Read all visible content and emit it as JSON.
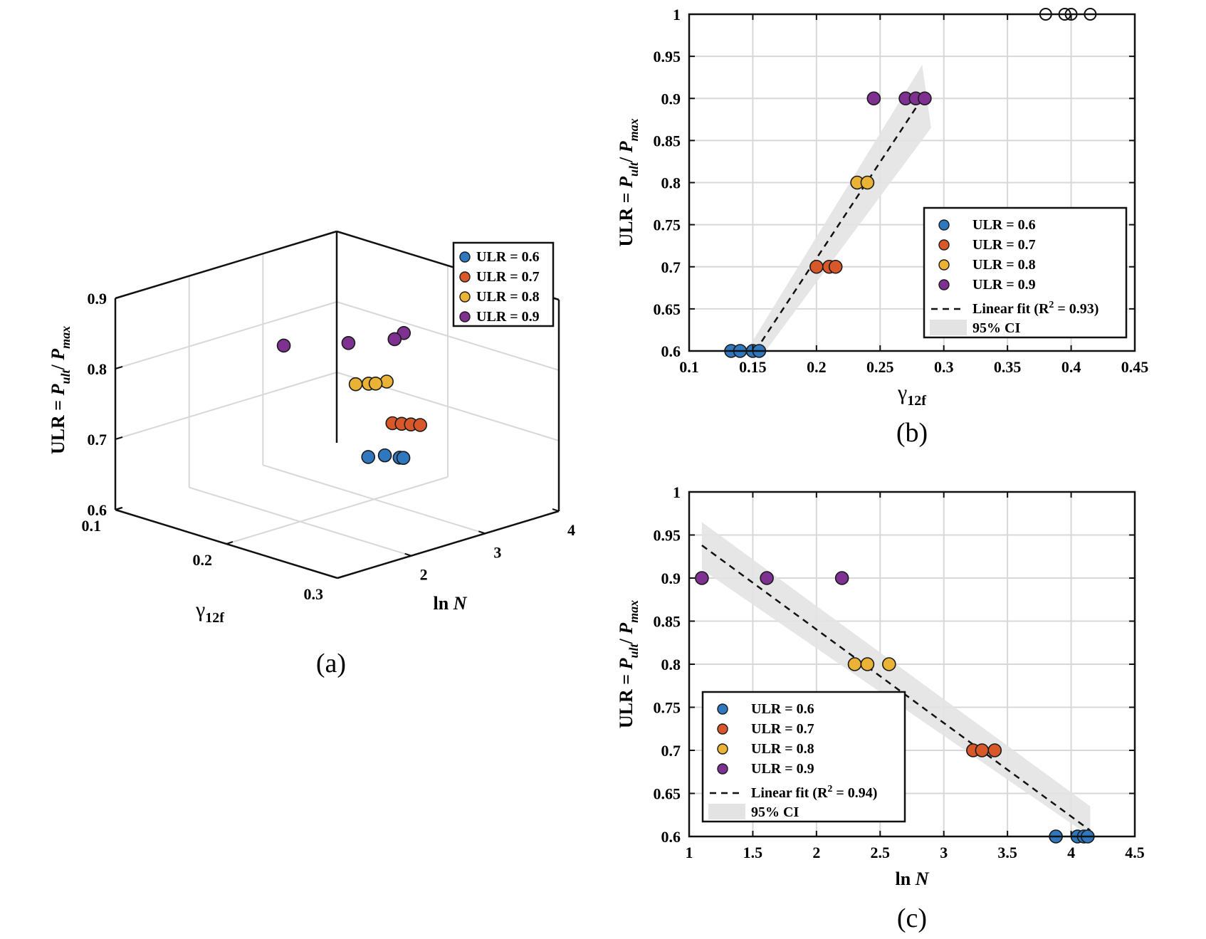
{
  "colors": {
    "ulr06": "#2f78c0",
    "ulr07": "#d9582a",
    "ulr08": "#ebb335",
    "ulr09": "#7e3191",
    "grid": "#d8d8d8",
    "ci": "#e3e3e3"
  },
  "chart_data": [
    {
      "id": "a",
      "type": "scatter3d",
      "panel_label": "(a)",
      "xlabel": "γ",
      "xlabel_sub": "12f",
      "ylabel": "ln ",
      "ylabel_italic": "N",
      "zlabel_prefix": "ULR = ",
      "zlabel_P1": "P",
      "zlabel_sub1": "ult",
      "zlabel_slash": "/ ",
      "zlabel_P2": "P",
      "zlabel_sub2": "max",
      "xlim": [
        0.1,
        0.3
      ],
      "ylim": [
        1,
        4
      ],
      "zlim": [
        0.6,
        0.9
      ],
      "xticks": [
        "0.1",
        "0.2",
        "0.3"
      ],
      "yticks": [
        "2",
        "3",
        "4"
      ],
      "zticks": [
        "0.6",
        "0.7",
        "0.8",
        "0.9"
      ],
      "legend": [
        "ULR = 0.6",
        "ULR = 0.7",
        "ULR = 0.8",
        "ULR = 0.9"
      ],
      "legend_position": "top-right",
      "series": [
        {
          "name": "ULR = 0.6",
          "points": [
            [
              0.135,
              3.9
            ],
            [
              0.14,
              4.05
            ],
            [
              0.15,
              4.1
            ],
            [
              0.152,
              4.12
            ]
          ]
        },
        {
          "name": "ULR = 0.7",
          "points": [
            [
              0.2,
              3.25
            ],
            [
              0.205,
              3.3
            ],
            [
              0.21,
              3.35
            ],
            [
              0.215,
              3.4
            ]
          ]
        },
        {
          "name": "ULR = 0.8",
          "points": [
            [
              0.23,
              2.3
            ],
            [
              0.235,
              2.4
            ],
            [
              0.24,
              2.57
            ],
            [
              0.238,
              2.45
            ]
          ]
        },
        {
          "name": "ULR = 0.9",
          "points": [
            [
              0.245,
              1.1
            ],
            [
              0.27,
              1.6
            ],
            [
              0.28,
              2.2
            ],
            [
              0.285,
              2.0
            ]
          ]
        }
      ]
    },
    {
      "id": "b",
      "type": "scatter",
      "panel_label": "(b)",
      "xlabel": "γ",
      "xlabel_sub": "12f",
      "ylabel_prefix": "ULR = ",
      "ylabel_P1": "P",
      "ylabel_sub1": "ult",
      "ylabel_slash": "/ ",
      "ylabel_P2": "P",
      "ylabel_sub2": "max",
      "xlim": [
        0.1,
        0.45
      ],
      "ylim": [
        0.6,
        1.0
      ],
      "xticks": [
        "0.1",
        "0.15",
        "0.2",
        "0.25",
        "0.3",
        "0.35",
        "0.4",
        "0.45"
      ],
      "xtick_values": [
        0.1,
        0.15,
        0.2,
        0.25,
        0.3,
        0.35,
        0.4,
        0.45
      ],
      "yticks": [
        "0.6",
        "0.65",
        "0.7",
        "0.75",
        "0.8",
        "0.85",
        "0.9",
        "0.95",
        "1"
      ],
      "ytick_values": [
        0.6,
        0.65,
        0.7,
        0.75,
        0.8,
        0.85,
        0.9,
        0.95,
        1.0
      ],
      "grid": true,
      "series": [
        {
          "name": "ULR = 0.6",
          "x": [
            0.133,
            0.14,
            0.15,
            0.155
          ],
          "y": [
            0.6,
            0.6,
            0.6,
            0.6
          ]
        },
        {
          "name": "ULR = 0.7",
          "x": [
            0.2,
            0.21,
            0.215
          ],
          "y": [
            0.7,
            0.7,
            0.7
          ]
        },
        {
          "name": "ULR = 0.8",
          "x": [
            0.232,
            0.24
          ],
          "y": [
            0.8,
            0.8
          ]
        },
        {
          "name": "ULR = 0.9",
          "x": [
            0.245,
            0.27,
            0.278,
            0.285
          ],
          "y": [
            0.9,
            0.9,
            0.9,
            0.9
          ]
        }
      ],
      "outlier_markers": {
        "x": [
          0.38,
          0.395,
          0.4,
          0.415
        ],
        "y": [
          1.0,
          1.0,
          1.0,
          1.0
        ]
      },
      "fit": {
        "x": [
          0.152,
          0.283
        ],
        "y": [
          0.6,
          0.9
        ]
      },
      "ci_band": {
        "x": [
          0.145,
          0.283,
          0.29,
          0.16
        ],
        "y": [
          0.6,
          0.94,
          0.865,
          0.6
        ]
      },
      "legend": {
        "entries": [
          "ULR = 0.6",
          "ULR = 0.7",
          "ULR = 0.8",
          "ULR = 0.9"
        ],
        "fit_label_prefix": "Linear fit (R",
        "fit_label_sup": "2",
        "fit_label_suffix": " = 0.93)",
        "ci_label": "95% CI",
        "position": "bottom-right"
      }
    },
    {
      "id": "c",
      "type": "scatter",
      "panel_label": "(c)",
      "xlabel": "ln ",
      "xlabel_italic": "N",
      "ylabel_prefix": "ULR = ",
      "ylabel_P1": "P",
      "ylabel_sub1": "ult",
      "ylabel_slash": "/ ",
      "ylabel_P2": "P",
      "ylabel_sub2": "max",
      "xlim": [
        1,
        4.5
      ],
      "ylim": [
        0.6,
        1.0
      ],
      "xticks": [
        "1",
        "1.5",
        "2",
        "2.5",
        "3",
        "3.5",
        "4",
        "4.5"
      ],
      "xtick_values": [
        1,
        1.5,
        2,
        2.5,
        3,
        3.5,
        4,
        4.5
      ],
      "yticks": [
        "0.6",
        "0.65",
        "0.7",
        "0.75",
        "0.8",
        "0.85",
        "0.9",
        "0.95",
        "1"
      ],
      "ytick_values": [
        0.6,
        0.65,
        0.7,
        0.75,
        0.8,
        0.85,
        0.9,
        0.95,
        1.0
      ],
      "grid": true,
      "series": [
        {
          "name": "ULR = 0.6",
          "x": [
            3.88,
            4.05,
            4.1,
            4.13
          ],
          "y": [
            0.6,
            0.6,
            0.6,
            0.6
          ]
        },
        {
          "name": "ULR = 0.7",
          "x": [
            3.23,
            3.3,
            3.4
          ],
          "y": [
            0.7,
            0.7,
            0.7
          ]
        },
        {
          "name": "ULR = 0.8",
          "x": [
            2.3,
            2.4,
            2.57
          ],
          "y": [
            0.8,
            0.8,
            0.8
          ]
        },
        {
          "name": "ULR = 0.9",
          "x": [
            1.1,
            1.61,
            2.2
          ],
          "y": [
            0.9,
            0.9,
            0.9
          ]
        }
      ],
      "fit": {
        "x": [
          1.1,
          4.15
        ],
        "y": [
          0.938,
          0.607
        ]
      },
      "ci_band": {
        "x": [
          1.1,
          4.15,
          4.15,
          1.1
        ],
        "y": [
          0.965,
          0.635,
          0.6,
          0.91
        ]
      },
      "legend": {
        "entries": [
          "ULR = 0.6",
          "ULR = 0.7",
          "ULR = 0.8",
          "ULR = 0.9"
        ],
        "fit_label_prefix": "Linear fit (R",
        "fit_label_sup": "2",
        "fit_label_suffix": " = 0.94)",
        "ci_label": "95% CI",
        "position": "bottom-left"
      }
    }
  ]
}
